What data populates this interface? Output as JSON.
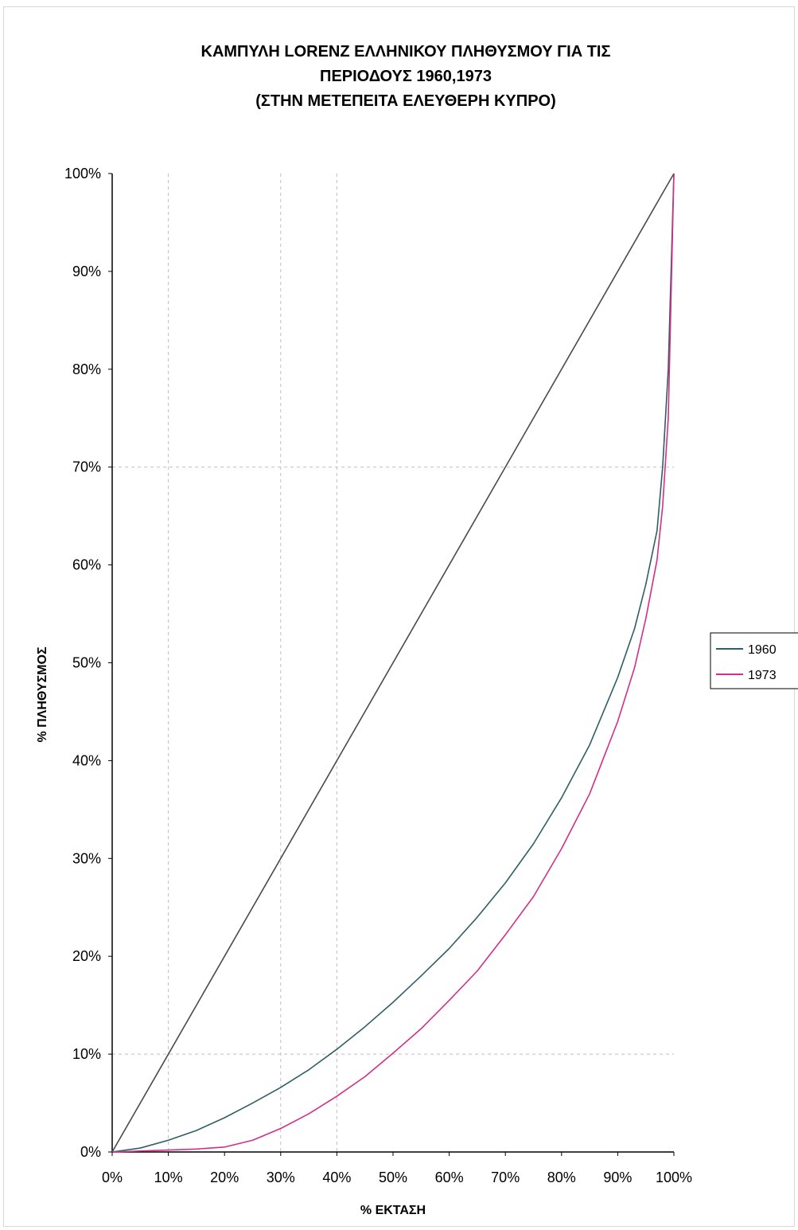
{
  "chart_data": {
    "type": "line",
    "title": [
      "ΚΑΜΠΥΛΗ LORENZ ΕΛΛΗΝΙΚΟΥ ΠΛΗΘΥΣΜΟΥ ΓΙΑ ΤΙΣ",
      "ΠΕΡΙΟΔΟΥΣ 1960,1973",
      "(ΣΤΗΝ ΜΕΤΕΠΕΙΤΑ ΕΛΕΥΘΕΡΗ ΚΥΠΡΟ)"
    ],
    "xlabel": "% ΕΚΤΑΣΗ",
    "ylabel": "% ΠΛΗΘΥΣΜΟΣ",
    "xlim": [
      0,
      100
    ],
    "ylim": [
      0,
      100
    ],
    "x_ticks": [
      "0%",
      "10%",
      "20%",
      "30%",
      "40%",
      "50%",
      "60%",
      "70%",
      "80%",
      "90%",
      "100%"
    ],
    "y_ticks": [
      "0%",
      "10%",
      "20%",
      "30%",
      "40%",
      "50%",
      "60%",
      "70%",
      "80%",
      "90%",
      "100%"
    ],
    "grid": {
      "vertical_at": [
        10,
        30,
        40
      ],
      "horizontal_at": [
        10,
        70
      ]
    },
    "legend_placement": "right",
    "series": [
      {
        "id": "equality",
        "color": "#4a4a4a",
        "x": [
          0,
          100
        ],
        "y": [
          0,
          100
        ]
      },
      {
        "name": "1960",
        "color": "#2e5f63",
        "x": [
          0,
          5,
          10,
          15,
          20,
          25,
          30,
          35,
          40,
          45,
          50,
          55,
          60,
          65,
          70,
          75,
          80,
          85,
          90,
          93,
          95,
          97,
          98,
          99,
          100
        ],
        "y": [
          0,
          0.4,
          1.2,
          2.2,
          3.5,
          5,
          6.6,
          8.4,
          10.5,
          12.8,
          15.3,
          18,
          20.8,
          24,
          27.5,
          31.5,
          36.2,
          41.6,
          48.5,
          53.5,
          58,
          63.5,
          70,
          80,
          100
        ]
      },
      {
        "name": "1973",
        "color": "#d0308a",
        "x": [
          0,
          5,
          10,
          15,
          20,
          25,
          30,
          35,
          40,
          45,
          50,
          55,
          60,
          65,
          70,
          75,
          80,
          85,
          90,
          93,
          95,
          97,
          98,
          99,
          100
        ],
        "y": [
          0,
          0.1,
          0.2,
          0.3,
          0.5,
          1.2,
          2.4,
          3.9,
          5.7,
          7.7,
          10.1,
          12.6,
          15.5,
          18.5,
          22.2,
          26.1,
          31,
          36.6,
          44,
          49.5,
          54.5,
          60.5,
          66,
          75,
          100
        ]
      }
    ]
  }
}
